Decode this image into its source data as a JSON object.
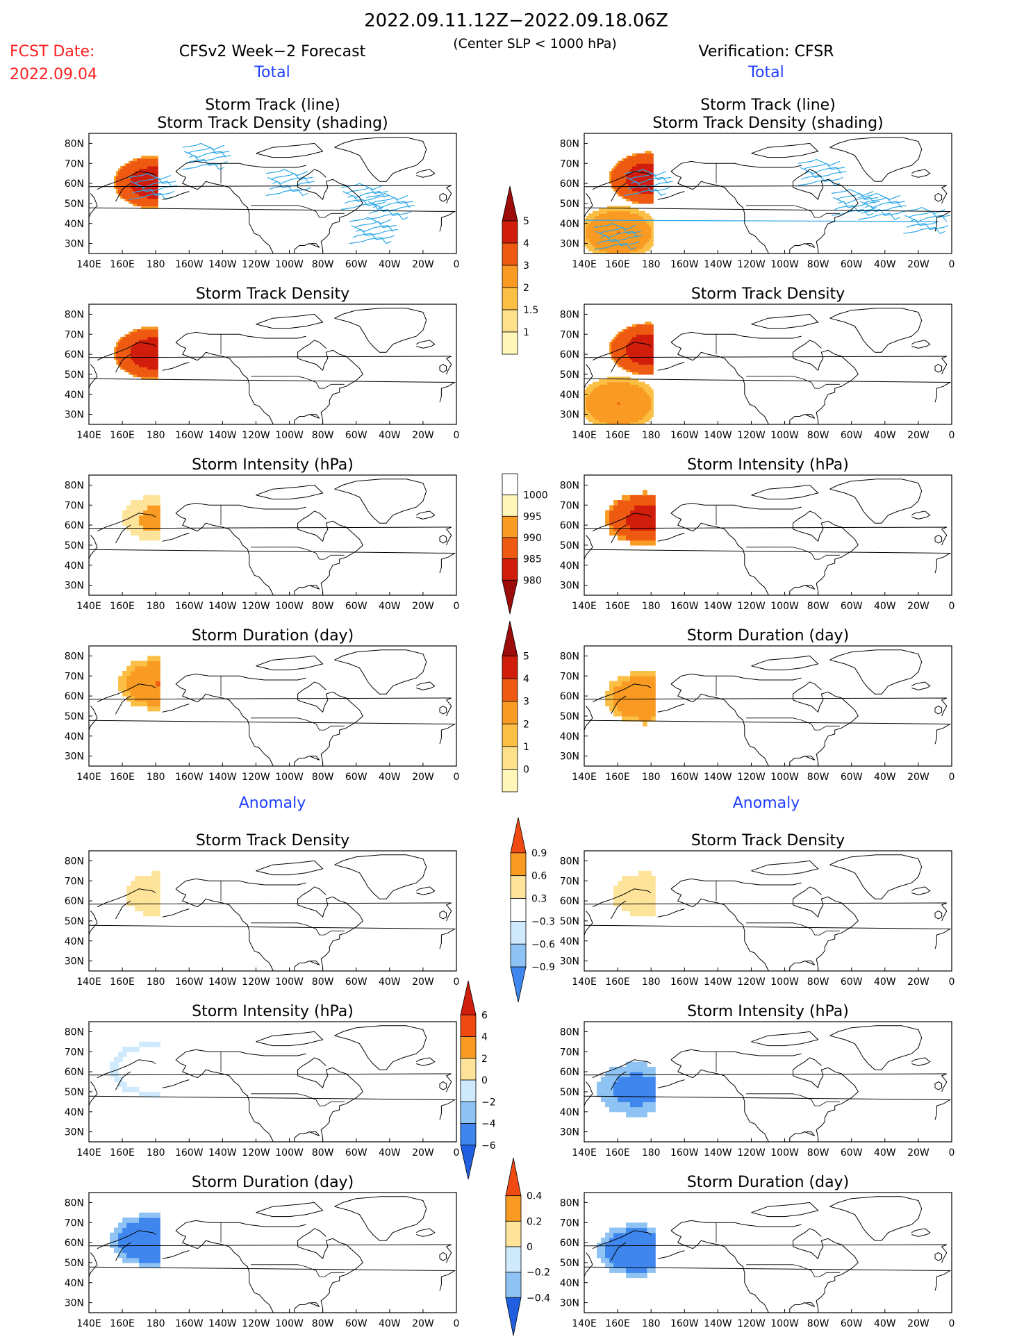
{
  "header": {
    "date_range": "2022.09.11.12Z−2022.09.18.06Z",
    "fcst_label": "FCST Date:",
    "fcst_date": "2022.09.04",
    "left_title": "CFSv2 Week−2 Forecast",
    "center_note": "(Center SLP < 1000 hPa)",
    "right_title": "Verification: CFSR",
    "total_label": "Total",
    "anomaly_label": "Anomaly",
    "colors": {
      "red": "#ff2020",
      "blue": "#2040ff"
    }
  },
  "chart_data": [
    {
      "type": "heatmap",
      "id": "fc-track-line",
      "title": "Storm Track (line)",
      "subtitle": "Storm Track Density (shading)",
      "x_ticks": [
        "140E",
        "160E",
        "180",
        "160W",
        "140W",
        "120W",
        "100W",
        "80W",
        "60W",
        "40W",
        "20W",
        "0"
      ],
      "y_ticks": [
        "80N",
        "70N",
        "60N",
        "50N",
        "40N",
        "30N"
      ],
      "blobs": [
        {
          "lon": 178,
          "lat": 60,
          "v": 5
        },
        {
          "lon": -100,
          "lat": 62,
          "v": 2
        },
        {
          "lon": -55,
          "lat": 55,
          "v": 3
        },
        {
          "lon": -40,
          "lat": 50,
          "v": 5
        },
        {
          "lon": -50,
          "lat": 38,
          "v": 2
        },
        {
          "lon": -150,
          "lat": 75,
          "v": 1.5
        }
      ]
    },
    {
      "type": "heatmap",
      "id": "cf-track-line",
      "title": "Storm Track (line)",
      "subtitle": "Storm Track Density (shading)",
      "x_ticks": [
        "140E",
        "160E",
        "180",
        "160W",
        "140W",
        "120W",
        "100W",
        "80W",
        "60W",
        "40W",
        "20W",
        "0"
      ],
      "y_ticks": [
        "80N",
        "70N",
        "60N",
        "50N",
        "40N",
        "30N"
      ],
      "blobs": [
        {
          "lon": 178,
          "lat": 62,
          "v": 5
        },
        {
          "lon": 160,
          "lat": 35,
          "v": 3
        },
        {
          "lon": -78,
          "lat": 67,
          "v": 5
        },
        {
          "lon": -58,
          "lat": 52,
          "v": 5
        },
        {
          "lon": -42,
          "lat": 50,
          "v": 5
        },
        {
          "lon": -15,
          "lat": 43,
          "v": 5
        }
      ]
    },
    {
      "type": "heatmap",
      "id": "fc-density",
      "title": "Storm Track Density",
      "blobs": [
        {
          "lon": 178,
          "lat": 60,
          "v": 5
        },
        {
          "lon": -100,
          "lat": 62,
          "v": 2
        },
        {
          "lon": -55,
          "lat": 55,
          "v": 3
        },
        {
          "lon": -40,
          "lat": 50,
          "v": 5
        },
        {
          "lon": -50,
          "lat": 38,
          "v": 2
        },
        {
          "lon": -150,
          "lat": 75,
          "v": 1.5
        }
      ]
    },
    {
      "type": "heatmap",
      "id": "cf-density",
      "title": "Storm Track Density",
      "blobs": [
        {
          "lon": 178,
          "lat": 62,
          "v": 5
        },
        {
          "lon": 160,
          "lat": 35,
          "v": 3
        },
        {
          "lon": -78,
          "lat": 67,
          "v": 5
        },
        {
          "lon": -58,
          "lat": 52,
          "v": 5
        },
        {
          "lon": -42,
          "lat": 50,
          "v": 5
        },
        {
          "lon": -15,
          "lat": 43,
          "v": 5
        }
      ]
    },
    {
      "type": "heatmap",
      "id": "fc-intensity",
      "title": "Storm Intensity (hPa)",
      "blobs": [
        {
          "lon": 180,
          "lat": 62,
          "v": 992
        },
        {
          "lon": -85,
          "lat": 62,
          "v": 997
        },
        {
          "lon": -45,
          "lat": 55,
          "v": 990
        },
        {
          "lon": -20,
          "lat": 65,
          "v": 985
        }
      ]
    },
    {
      "type": "heatmap",
      "id": "cf-intensity",
      "title": "Storm Intensity (hPa)",
      "blobs": [
        {
          "lon": 175,
          "lat": 62,
          "v": 982
        },
        {
          "lon": -80,
          "lat": 65,
          "v": 997
        },
        {
          "lon": -55,
          "lat": 52,
          "v": 990
        },
        {
          "lon": -15,
          "lat": 42,
          "v": 998
        }
      ]
    },
    {
      "type": "heatmap",
      "id": "fc-duration",
      "title": "Storm Duration (day)",
      "blobs": [
        {
          "lon": 180,
          "lat": 65,
          "v": 3
        },
        {
          "lon": -80,
          "lat": 62,
          "v": 3
        },
        {
          "lon": -45,
          "lat": 55,
          "v": 4
        },
        {
          "lon": -30,
          "lat": 65,
          "v": 4
        }
      ]
    },
    {
      "type": "heatmap",
      "id": "cf-duration",
      "title": "Storm Duration (day)",
      "blobs": [
        {
          "lon": 175,
          "lat": 58,
          "v": 3
        },
        {
          "lon": -80,
          "lat": 67,
          "v": 3
        },
        {
          "lon": -50,
          "lat": 50,
          "v": 4
        },
        {
          "lon": -15,
          "lat": 42,
          "v": 3
        }
      ]
    },
    {
      "type": "heatmap",
      "id": "fc-anom-density",
      "title": "Storm Track Density",
      "blobs": [
        {
          "lon": 180,
          "lat": 62,
          "v": 0.9
        },
        {
          "lon": -45,
          "lat": 48,
          "v": 0.9
        },
        {
          "lon": -150,
          "lat": 52,
          "v": -0.9
        },
        {
          "lon": -50,
          "lat": 65,
          "v": -0.9
        }
      ]
    },
    {
      "type": "heatmap",
      "id": "cf-anom-density",
      "title": "Storm Track Density",
      "blobs": [
        {
          "lon": 175,
          "lat": 62,
          "v": 0.9
        },
        {
          "lon": -78,
          "lat": 67,
          "v": 0.9
        },
        {
          "lon": -50,
          "lat": 50,
          "v": 0.9
        },
        {
          "lon": -15,
          "lat": 43,
          "v": 0.9
        },
        {
          "lon": -100,
          "lat": 70,
          "v": -0.9
        }
      ]
    },
    {
      "type": "heatmap",
      "id": "fc-anom-intensity",
      "title": "Storm Intensity (hPa)",
      "blobs": [
        {
          "lon": 175,
          "lat": 60,
          "v": 3
        },
        {
          "lon": -80,
          "lat": 65,
          "v": 4
        },
        {
          "lon": -35,
          "lat": 55,
          "v": -3
        }
      ]
    },
    {
      "type": "heatmap",
      "id": "cf-anom-intensity",
      "title": "Storm Intensity (hPa)",
      "blobs": [
        {
          "lon": 170,
          "lat": 50,
          "v": -5
        },
        {
          "lon": -78,
          "lat": 67,
          "v": 5
        },
        {
          "lon": -55,
          "lat": 52,
          "v": 4
        },
        {
          "lon": -40,
          "lat": 52,
          "v": -3
        }
      ]
    },
    {
      "type": "heatmap",
      "id": "fc-anom-duration",
      "title": "Storm Duration (day)",
      "blobs": [
        {
          "lon": 175,
          "lat": 60,
          "v": -0.4
        },
        {
          "lon": -45,
          "lat": 60,
          "v": 0.4
        },
        {
          "lon": -80,
          "lat": 62,
          "v": -0.4
        }
      ]
    },
    {
      "type": "heatmap",
      "id": "cf-anom-duration",
      "title": "Storm Duration (day)",
      "blobs": [
        {
          "lon": 170,
          "lat": 55,
          "v": -0.4
        },
        {
          "lon": -78,
          "lat": 68,
          "v": -0.4
        },
        {
          "lon": -45,
          "lat": 45,
          "v": 0.4
        },
        {
          "lon": -15,
          "lat": 42,
          "v": -0.4
        }
      ]
    }
  ],
  "colorbars": {
    "density": [
      "1",
      "1.5",
      "2",
      "3",
      "4",
      "5"
    ],
    "intensity": [
      "1000",
      "995",
      "990",
      "985",
      "980"
    ],
    "duration": [
      "0",
      "1",
      "2",
      "3",
      "4",
      "5"
    ],
    "anom_density": [
      "0.9",
      "0.6",
      "0.3",
      "−0.3",
      "−0.6",
      "−0.9"
    ],
    "anom_intensity": [
      "6",
      "4",
      "2",
      "0",
      "−2",
      "−4",
      "−6"
    ],
    "anom_duration": [
      "0.4",
      "0.2",
      "0",
      "−0.2",
      "−0.4"
    ]
  },
  "x_ticks": [
    "140E",
    "160E",
    "180",
    "160W",
    "140W",
    "120W",
    "100W",
    "80W",
    "60W",
    "40W",
    "20W",
    "0"
  ],
  "y_ticks": [
    "80N",
    "70N",
    "60N",
    "50N",
    "40N",
    "30N"
  ]
}
